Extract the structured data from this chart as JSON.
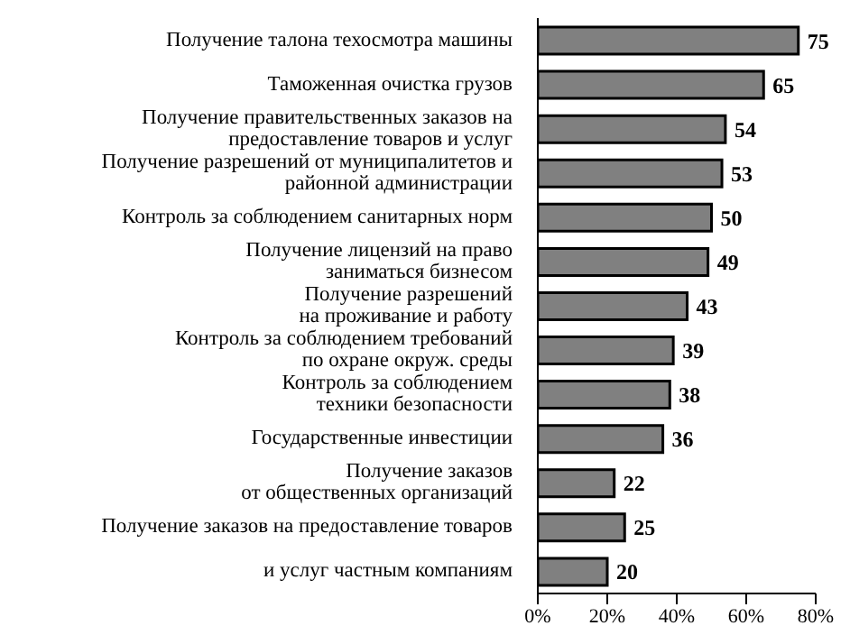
{
  "chart_data": {
    "type": "bar",
    "orientation": "horizontal",
    "categories": [
      "Получение талона техосмотра машины",
      "Таможенная очистка грузов",
      "Получение правительственных заказов на\nпредоставление товаров и услуг",
      "Получение разрешений от муниципалитетов и\nрайонной администрации",
      "Контроль за соблюдением санитарных норм",
      "Получение лицензий на право\nзаниматься бизнесом",
      "Получение разрешений\nна проживание и работу",
      "Контроль за соблюдением требований\nпо охране окруж. среды",
      "Контроль за соблюдением\nтехники безопасности",
      "Государственные инвестиции",
      "Получение заказов\nот общественных организаций",
      "Получение заказов на предоставление товаров",
      "и услуг частным компаниям"
    ],
    "values": [
      75,
      65,
      54,
      53,
      50,
      49,
      43,
      39,
      38,
      36,
      22,
      25,
      20
    ],
    "color": "#808080",
    "xlim": [
      0,
      80
    ],
    "xticks": [
      {
        "value": 0,
        "label": "0%"
      },
      {
        "value": 20,
        "label": "20%"
      },
      {
        "value": 40,
        "label": "40%"
      },
      {
        "value": 60,
        "label": "60%"
      },
      {
        "value": 80,
        "label": "80%"
      }
    ],
    "data_labels": true,
    "grid": false
  }
}
